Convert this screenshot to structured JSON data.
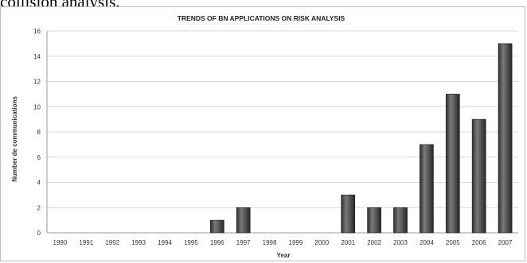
{
  "caption_fragment": "collision analysis.",
  "chart_data": {
    "type": "bar",
    "title": "TRENDS OF BN APPLICATIONS ON RISK ANALYSIS",
    "xlabel": "Year",
    "ylabel": "Number de communications",
    "categories": [
      "1990",
      "1991",
      "1992",
      "1993",
      "1994",
      "1995",
      "1996",
      "1997",
      "1998",
      "1999",
      "2000",
      "2001",
      "2002",
      "2003",
      "2004",
      "2005",
      "2006",
      "2007"
    ],
    "values": [
      0,
      0,
      0,
      0,
      0,
      0,
      1,
      2,
      0,
      0,
      0,
      3,
      2,
      2,
      7,
      11,
      9,
      15
    ],
    "ylim": [
      0,
      16
    ],
    "yticks": [
      0,
      2,
      4,
      6,
      8,
      10,
      12,
      14,
      16
    ],
    "grid": "horizontal",
    "legend": "none",
    "bar_color": "#555555"
  }
}
